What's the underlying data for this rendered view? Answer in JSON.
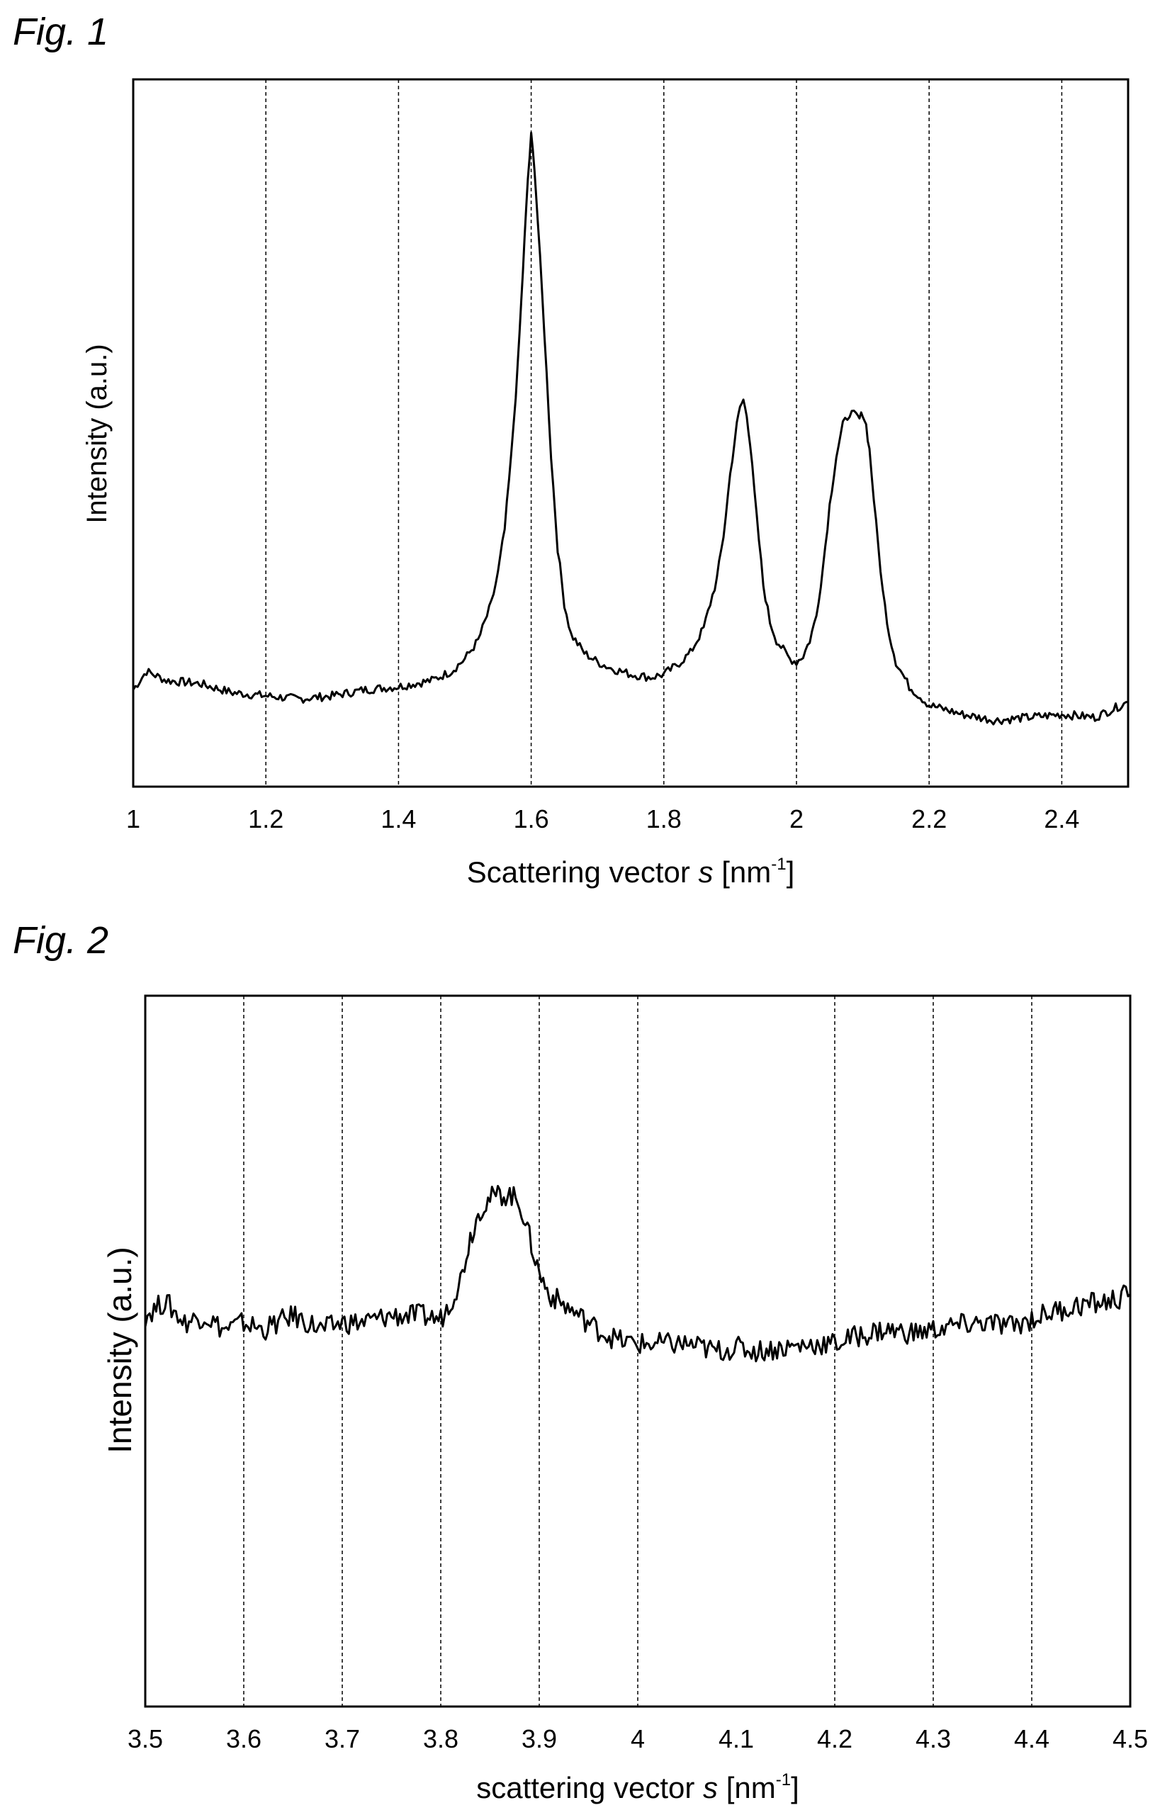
{
  "figures": [
    {
      "label": "Fig. 1",
      "chart_data": {
        "type": "line",
        "xlabel": "Scattering vector",
        "xlabel_symbol": "s",
        "xlabel_unit_prefix": "[nm",
        "xlabel_unit_exp": "-1",
        "xlabel_unit_suffix": "]",
        "ylabel": "Intensity (a.u.)",
        "xlim": [
          1.0,
          2.5
        ],
        "ylim": [
          0,
          100
        ],
        "x_ticks": [
          1,
          1.2,
          1.4,
          1.6,
          1.8,
          2,
          2.2,
          2.4
        ],
        "x_tick_labels": [
          "1",
          "1.2",
          "1.4",
          "1.6",
          "1.8",
          "2",
          "2.2",
          "2.4"
        ],
        "gridlines_x": [
          1.2,
          1.4,
          1.6,
          1.8,
          2.0,
          2.2,
          2.4
        ],
        "grid": "vertical dashed",
        "series": [
          {
            "x": [
              1.0,
              1.02,
              1.05,
              1.1,
              1.15,
              1.2,
              1.25,
              1.3,
              1.35,
              1.4,
              1.45,
              1.48,
              1.5,
              1.52,
              1.54,
              1.55,
              1.56,
              1.57,
              1.58,
              1.585,
              1.59,
              1.595,
              1.6,
              1.605,
              1.61,
              1.62,
              1.63,
              1.64,
              1.65,
              1.66,
              1.68,
              1.7,
              1.72,
              1.75,
              1.78,
              1.8,
              1.82,
              1.84,
              1.86,
              1.88,
              1.89,
              1.9,
              1.91,
              1.915,
              1.92,
              1.925,
              1.93,
              1.94,
              1.95,
              1.96,
              1.97,
              1.98,
              1.99,
              2.0,
              2.01,
              2.02,
              2.03,
              2.04,
              2.05,
              2.06,
              2.07,
              2.08,
              2.09,
              2.095,
              2.1,
              2.105,
              2.11,
              2.12,
              2.13,
              2.14,
              2.15,
              2.17,
              2.2,
              2.25,
              2.3,
              2.35,
              2.4,
              2.45,
              2.5
            ],
            "y": [
              10.0,
              13.0,
              11.5,
              11.0,
              9.5,
              9.0,
              8.5,
              9.0,
              10.0,
              10.5,
              11.5,
              13.0,
              15.0,
              18.0,
              24.0,
              29.0,
              36.0,
              48.0,
              63.0,
              73.0,
              83.0,
              93.0,
              100.0,
              95.0,
              86.0,
              68.0,
              48.0,
              33.0,
              24.0,
              19.0,
              16.0,
              14.5,
              13.5,
              12.5,
              12.0,
              12.5,
              14.0,
              16.0,
              20.0,
              28.0,
              35.0,
              45.0,
              53.0,
              56.0,
              57.0,
              55.0,
              50.0,
              38.0,
              27.0,
              21.0,
              18.0,
              16.5,
              15.0,
              14.5,
              15.5,
              18.0,
              22.0,
              30.0,
              40.0,
              48.0,
              53.0,
              55.0,
              54.5,
              54.0,
              55.0,
              53.0,
              49.0,
              37.0,
              26.0,
              19.0,
              14.5,
              10.5,
              7.5,
              6.0,
              5.0,
              5.5,
              6.0,
              5.5,
              8.0
            ]
          }
        ]
      }
    },
    {
      "label": "Fig. 2",
      "chart_data": {
        "type": "line",
        "xlabel": "scattering  vector",
        "xlabel_symbol": "s",
        "xlabel_unit_prefix": "[nm",
        "xlabel_unit_exp": "-1",
        "xlabel_unit_suffix": "]",
        "ylabel": "Intensity (a.u.)",
        "xlim": [
          3.5,
          4.5
        ],
        "ylim": [
          0,
          100
        ],
        "x_ticks": [
          3.5,
          3.6,
          3.7,
          3.8,
          3.9,
          4.0,
          4.1,
          4.2,
          4.3,
          4.4,
          4.5
        ],
        "x_tick_labels": [
          "3.5",
          "3.6",
          "3.7",
          "3.8",
          "3.9",
          "4",
          "4.1",
          "4.2",
          "4.3",
          "4.4",
          "4.5"
        ],
        "gridlines_x": [
          3.6,
          3.7,
          3.8,
          3.9,
          4.0,
          4.2,
          4.3,
          4.4
        ],
        "grid": "vertical dashed",
        "series": [
          {
            "x": [
              3.5,
              3.52,
              3.54,
              3.56,
              3.58,
              3.6,
              3.62,
              3.65,
              3.68,
              3.7,
              3.72,
              3.75,
              3.78,
              3.8,
              3.81,
              3.82,
              3.83,
              3.84,
              3.85,
              3.86,
              3.87,
              3.88,
              3.89,
              3.9,
              3.91,
              3.92,
              3.94,
              3.96,
              3.98,
              4.0,
              4.02,
              4.05,
              4.08,
              4.1,
              4.12,
              4.15,
              4.18,
              4.2,
              4.22,
              4.25,
              4.28,
              4.3,
              4.32,
              4.35,
              4.38,
              4.4,
              4.42,
              4.45,
              4.48,
              4.5
            ],
            "y": [
              55.0,
              57.0,
              54.0,
              55.0,
              53.0,
              54.0,
              53.0,
              55.0,
              53.0,
              54.0,
              54.0,
              55.0,
              55.0,
              54.5,
              57.0,
              60.0,
              66.0,
              70.0,
              71.5,
              72.0,
              72.0,
              71.0,
              66.0,
              61.0,
              58.0,
              57.0,
              55.0,
              53.0,
              51.5,
              51.0,
              51.0,
              51.0,
              50.0,
              50.5,
              50.0,
              50.5,
              51.0,
              51.0,
              52.0,
              53.0,
              52.5,
              53.0,
              53.5,
              54.0,
              53.5,
              54.5,
              55.5,
              56.5,
              57.0,
              58.0
            ]
          }
        ]
      }
    }
  ]
}
